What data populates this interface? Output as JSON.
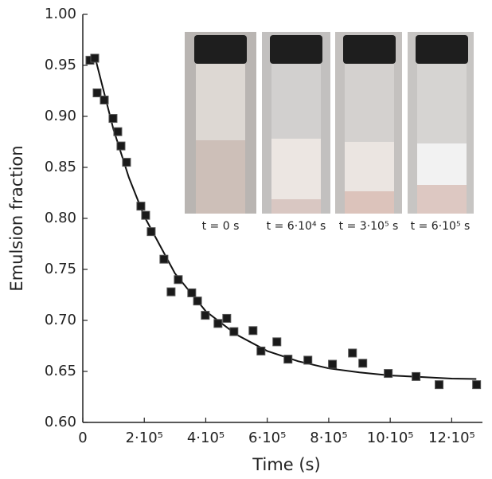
{
  "chart_data": {
    "type": "scatter",
    "x_label": "Time (s)",
    "y_label": "Emulsion fraction",
    "xlim": [
      0,
      1300000
    ],
    "ylim": [
      0.6,
      1.0
    ],
    "xticks": [
      0,
      {
        "value": 200000,
        "label": "2·10⁵"
      },
      {
        "value": 400000,
        "label": "4·10⁵"
      },
      {
        "value": 600000,
        "label": "6·10⁵"
      },
      {
        "value": 800000,
        "label": "8·10⁵"
      },
      {
        "value": 1000000,
        "label": "10·10⁵"
      },
      {
        "value": 1200000,
        "label": "12·10⁵"
      }
    ],
    "yticks": [
      {
        "value": 0.6,
        "label": "0.60"
      },
      0.65,
      {
        "value": 0.7,
        "label": "0.70"
      },
      0.75,
      {
        "value": 0.8,
        "label": "0.80"
      },
      0.85,
      {
        "value": 0.9,
        "label": "0.90"
      },
      0.95,
      {
        "value": 1.0,
        "label": "1.00"
      }
    ],
    "points": {
      "color": "#1a1a1a",
      "x": [
        23300,
        38800,
        46600,
        69900,
        98300,
        113800,
        124200,
        142300,
        188900,
        204400,
        222500,
        263900,
        287200,
        310500,
        354400,
        373100,
        398400,
        439800,
        468300,
        491600,
        553700,
        579600,
        631300,
        667500,
        732200,
        812100,
        877200,
        910800,
        993500,
        1084000,
        1159000,
        1281000
      ],
      "y": [
        0.955,
        0.957,
        0.923,
        0.916,
        0.898,
        0.885,
        0.871,
        0.855,
        0.812,
        0.803,
        0.787,
        0.76,
        0.728,
        0.74,
        0.727,
        0.719,
        0.705,
        0.697,
        0.702,
        0.689,
        0.69,
        0.67,
        0.679,
        0.662,
        0.661,
        0.657,
        0.668,
        0.658,
        0.648,
        0.645,
        0.637,
        0.637
      ]
    },
    "fit": {
      "color": "#111111",
      "x": [
        40000,
        100000,
        150000,
        200000,
        300000,
        400000,
        500000,
        600000,
        700000,
        800000,
        900000,
        1000000,
        1100000,
        1200000,
        1280000
      ],
      "y": [
        0.958,
        0.887,
        0.84,
        0.802,
        0.746,
        0.709,
        0.686,
        0.67,
        0.66,
        0.653,
        0.649,
        0.646,
        0.6445,
        0.643,
        0.6426
      ]
    },
    "inset_labels": [
      "t = 0 s",
      "t = 6·10⁴ s",
      "t = 3·10⁵ s",
      "t = 6·10⁵ s"
    ]
  }
}
